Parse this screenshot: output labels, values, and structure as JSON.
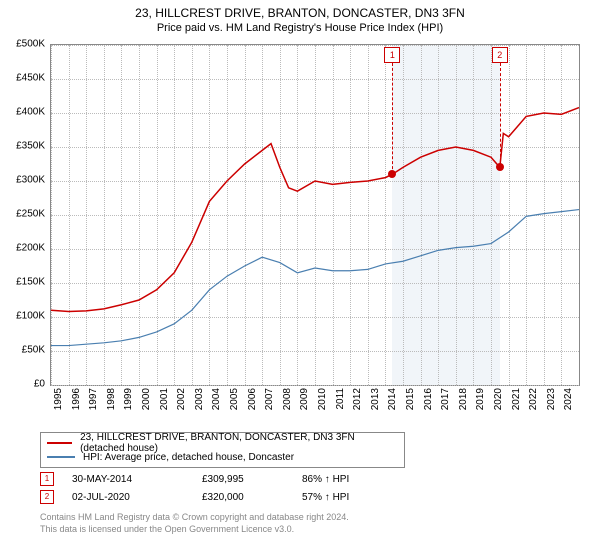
{
  "title": "23, HILLCREST DRIVE, BRANTON, DONCASTER, DN3 3FN",
  "subtitle": "Price paid vs. HM Land Registry's House Price Index (HPI)",
  "chart": {
    "type": "line",
    "background_color": "#ffffff",
    "grid_color": "#bbbbbb",
    "border_color": "#888888",
    "ylim": [
      0,
      500000
    ],
    "ytick_step": 50000,
    "yticks": [
      "£0",
      "£50K",
      "£100K",
      "£150K",
      "£200K",
      "£250K",
      "£300K",
      "£350K",
      "£400K",
      "£450K",
      "£500K"
    ],
    "xticks": [
      "1995",
      "1996",
      "1997",
      "1998",
      "1999",
      "2000",
      "2001",
      "2002",
      "2003",
      "2004",
      "2005",
      "2006",
      "2007",
      "2008",
      "2009",
      "2010",
      "2011",
      "2012",
      "2013",
      "2014",
      "2015",
      "2016",
      "2017",
      "2018",
      "2019",
      "2020",
      "2021",
      "2022",
      "2023",
      "2024"
    ],
    "xlim": [
      1995,
      2025
    ],
    "shaded_region": {
      "x_start": 2014.4,
      "x_end": 2020.5,
      "color": "#e8eef5"
    },
    "series": [
      {
        "name": "price_paid",
        "label": "23, HILLCREST DRIVE, BRANTON, DONCASTER, DN3 3FN (detached house)",
        "color": "#cc0000",
        "line_width": 1.5,
        "points": [
          [
            1995,
            110000
          ],
          [
            1996,
            108000
          ],
          [
            1997,
            109000
          ],
          [
            1998,
            112000
          ],
          [
            1999,
            118000
          ],
          [
            2000,
            125000
          ],
          [
            2001,
            140000
          ],
          [
            2002,
            165000
          ],
          [
            2003,
            210000
          ],
          [
            2004,
            270000
          ],
          [
            2005,
            300000
          ],
          [
            2006,
            325000
          ],
          [
            2007,
            345000
          ],
          [
            2007.5,
            355000
          ],
          [
            2008,
            320000
          ],
          [
            2008.5,
            290000
          ],
          [
            2009,
            285000
          ],
          [
            2010,
            300000
          ],
          [
            2011,
            295000
          ],
          [
            2012,
            298000
          ],
          [
            2013,
            300000
          ],
          [
            2014,
            305000
          ],
          [
            2014.4,
            309995
          ],
          [
            2015,
            320000
          ],
          [
            2016,
            335000
          ],
          [
            2017,
            345000
          ],
          [
            2018,
            350000
          ],
          [
            2019,
            345000
          ],
          [
            2020,
            335000
          ],
          [
            2020.5,
            320000
          ],
          [
            2020.7,
            370000
          ],
          [
            2021,
            365000
          ],
          [
            2022,
            395000
          ],
          [
            2023,
            400000
          ],
          [
            2024,
            398000
          ],
          [
            2025,
            408000
          ]
        ]
      },
      {
        "name": "hpi",
        "label": "HPI: Average price, detached house, Doncaster",
        "color": "#4a7fb0",
        "line_width": 1.2,
        "points": [
          [
            1995,
            58000
          ],
          [
            1996,
            58000
          ],
          [
            1997,
            60000
          ],
          [
            1998,
            62000
          ],
          [
            1999,
            65000
          ],
          [
            2000,
            70000
          ],
          [
            2001,
            78000
          ],
          [
            2002,
            90000
          ],
          [
            2003,
            110000
          ],
          [
            2004,
            140000
          ],
          [
            2005,
            160000
          ],
          [
            2006,
            175000
          ],
          [
            2007,
            188000
          ],
          [
            2008,
            180000
          ],
          [
            2009,
            165000
          ],
          [
            2010,
            172000
          ],
          [
            2011,
            168000
          ],
          [
            2012,
            168000
          ],
          [
            2013,
            170000
          ],
          [
            2014,
            178000
          ],
          [
            2015,
            182000
          ],
          [
            2016,
            190000
          ],
          [
            2017,
            198000
          ],
          [
            2018,
            202000
          ],
          [
            2019,
            204000
          ],
          [
            2020,
            208000
          ],
          [
            2021,
            225000
          ],
          [
            2022,
            248000
          ],
          [
            2023,
            252000
          ],
          [
            2024,
            255000
          ],
          [
            2025,
            258000
          ]
        ]
      }
    ],
    "markers": [
      {
        "n": "1",
        "x": 2014.4,
        "y": 309995,
        "color": "#cc0000"
      },
      {
        "n": "2",
        "x": 2020.5,
        "y": 320000,
        "color": "#cc0000"
      }
    ]
  },
  "legend": {
    "items": [
      {
        "color": "#cc0000",
        "label": "23, HILLCREST DRIVE, BRANTON, DONCASTER, DN3 3FN (detached house)"
      },
      {
        "color": "#4a7fb0",
        "label": "HPI: Average price, detached house, Doncaster"
      }
    ]
  },
  "datapoints": [
    {
      "n": "1",
      "date": "30-MAY-2014",
      "price": "£309,995",
      "pct": "86% ↑ HPI"
    },
    {
      "n": "2",
      "date": "02-JUL-2020",
      "price": "£320,000",
      "pct": "57% ↑ HPI"
    }
  ],
  "attribution": {
    "line1": "Contains HM Land Registry data © Crown copyright and database right 2024.",
    "line2": "This data is licensed under the Open Government Licence v3.0."
  }
}
